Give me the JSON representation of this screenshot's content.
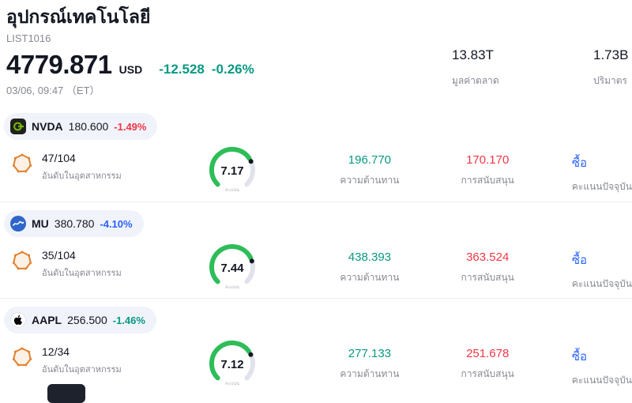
{
  "colors": {
    "green": "#089981",
    "red": "#F23645",
    "blue": "#2962FF",
    "gauge_green": "#2EBD59",
    "gauge_track": "#E0E3EB",
    "pill_bg": "#F0F3FA",
    "muted": "#868993"
  },
  "header": {
    "title": "อุปกรณ์เทคโนโลยี",
    "list_id": "LIST1016",
    "price": "4779.871",
    "currency": "USD",
    "change": "-12.528",
    "change_pct": "-0.26%",
    "change_color": "#089981",
    "datetime": "03/06, 09:47 （ET）",
    "market_cap": {
      "value": "13.83T",
      "label": "มูลค่าตลาด"
    },
    "volume": {
      "value": "1.73B",
      "label": "ปริมาตร"
    }
  },
  "rows": [
    {
      "ticker": "NVDA",
      "price": "180.600",
      "change_pct": "-1.49%",
      "change_color": "#F23645",
      "rank": "47/104",
      "rank_label": "อันดับในอุตสาหกรรม",
      "gauge": {
        "value": 7.17,
        "max": 10,
        "display": "7.17",
        "label": "คะแนน"
      },
      "resistance": {
        "value": "196.770",
        "label": "ความต้านทาน"
      },
      "support": {
        "value": "170.170",
        "label": "การสนับสนุน"
      },
      "signal": {
        "value": "ซื้อ",
        "label": "คะแนนปัจจุบัน"
      }
    },
    {
      "ticker": "MU",
      "price": "380.780",
      "change_pct": "-4.10%",
      "change_color": "#2962FF",
      "rank": "35/104",
      "rank_label": "อันดับในอุตสาหกรรม",
      "gauge": {
        "value": 7.44,
        "max": 10,
        "display": "7.44",
        "label": "คะแนน"
      },
      "resistance": {
        "value": "438.393",
        "label": "ความต้านทาน"
      },
      "support": {
        "value": "363.524",
        "label": "การสนับสนุน"
      },
      "signal": {
        "value": "ซื้อ",
        "label": "คะแนนปัจจุบัน"
      }
    },
    {
      "ticker": "AAPL",
      "price": "256.500",
      "change_pct": "-1.46%",
      "change_color": "#089981",
      "rank": "12/34",
      "rank_label": "อันดับในอุตสาหกรรม",
      "gauge": {
        "value": 7.12,
        "max": 10,
        "display": "7.12",
        "label": "คะแนน"
      },
      "resistance": {
        "value": "277.133",
        "label": "ความต้านทาน"
      },
      "support": {
        "value": "251.678",
        "label": "การสนับสนุน"
      },
      "signal": {
        "value": "ซื้อ",
        "label": "คะแนนปัจจุบัน"
      }
    }
  ]
}
